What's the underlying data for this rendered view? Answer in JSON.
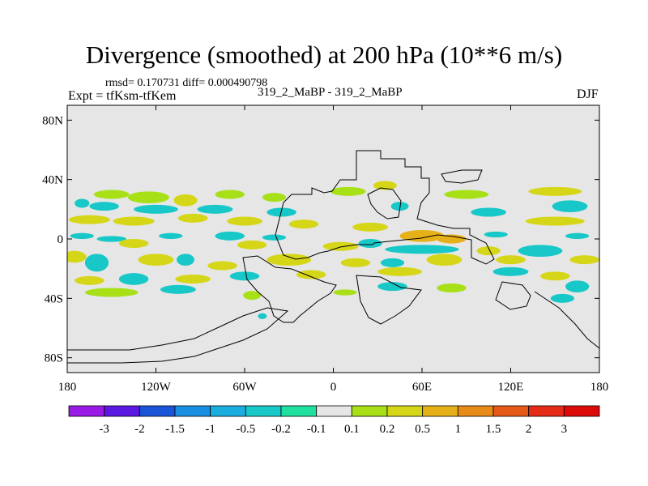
{
  "header": {
    "title": "Divergence (smoothed) at 200 hPa (10**6 m/s)",
    "rmsd_line": "rmsd= 0.170731 diff= 0.000490798",
    "expt_line": "Expt = tfKsm-tfKem",
    "runs_line": "319_2_MaBP - 319_2_MaBP",
    "season": "DJF"
  },
  "chart_data": {
    "type": "heatmap",
    "title": "Divergence (smoothed) at 200 hPa (10**6 m/s)",
    "xlabel": "",
    "ylabel": "",
    "xlim": [
      -180,
      180
    ],
    "ylim": [
      -90,
      90
    ],
    "x_ticks": [
      {
        "value": -180,
        "label": "180"
      },
      {
        "value": -120,
        "label": "120W"
      },
      {
        "value": -60,
        "label": "60W"
      },
      {
        "value": 0,
        "label": "0"
      },
      {
        "value": 60,
        "label": "60E"
      },
      {
        "value": 120,
        "label": "120E"
      },
      {
        "value": 180,
        "label": "180"
      }
    ],
    "y_ticks": [
      {
        "value": 80,
        "label": "80N"
      },
      {
        "value": 40,
        "label": "40N"
      },
      {
        "value": 0,
        "label": "0"
      },
      {
        "value": -40,
        "label": "40S"
      },
      {
        "value": -80,
        "label": "80S"
      }
    ],
    "colorbar": {
      "labels": [
        "-3",
        "-2",
        "-1.5",
        "-1",
        "-0.5",
        "-0.2",
        "-0.1",
        "0.1",
        "0.2",
        "0.5",
        "1",
        "1.5",
        "2",
        "3"
      ],
      "colors": [
        "#9a1ae6",
        "#5a18e0",
        "#1a55d8",
        "#1a8ee0",
        "#1aaee0",
        "#18c8c8",
        "#20e0a0",
        "#e6e6e6",
        "#a8e018",
        "#d6d618",
        "#e6b018",
        "#e68a18",
        "#e65818",
        "#e62a18",
        "#dd0a0a"
      ]
    },
    "background_color": "#e6e6e6",
    "features": [
      {
        "lon": -150,
        "lat": 30,
        "rx": 12,
        "ry": 3,
        "value": 0.2
      },
      {
        "lon": -125,
        "lat": 28,
        "rx": 14,
        "ry": 4,
        "value": 0.2
      },
      {
        "lon": -100,
        "lat": 26,
        "rx": 8,
        "ry": 4,
        "value": 0.3
      },
      {
        "lon": -70,
        "lat": 30,
        "rx": 10,
        "ry": 3,
        "value": 0.2
      },
      {
        "lon": -40,
        "lat": 28,
        "rx": 8,
        "ry": 3,
        "value": 0.2
      },
      {
        "lon": 10,
        "lat": 32,
        "rx": 12,
        "ry": 3,
        "value": 0.2
      },
      {
        "lon": 35,
        "lat": 36,
        "rx": 8,
        "ry": 3,
        "value": 0.3
      },
      {
        "lon": 90,
        "lat": 30,
        "rx": 15,
        "ry": 3,
        "value": 0.2
      },
      {
        "lon": 150,
        "lat": 32,
        "rx": 18,
        "ry": 3,
        "value": 0.3
      },
      {
        "lon": -170,
        "lat": 24,
        "rx": 5,
        "ry": 3,
        "value": -0.2
      },
      {
        "lon": -155,
        "lat": 22,
        "rx": 10,
        "ry": 3,
        "value": -0.3
      },
      {
        "lon": -120,
        "lat": 20,
        "rx": 15,
        "ry": 3,
        "value": -0.3
      },
      {
        "lon": -80,
        "lat": 20,
        "rx": 12,
        "ry": 3,
        "value": -0.3
      },
      {
        "lon": -35,
        "lat": 18,
        "rx": 10,
        "ry": 3,
        "value": -0.2
      },
      {
        "lon": 45,
        "lat": 22,
        "rx": 6,
        "ry": 3,
        "value": -0.3
      },
      {
        "lon": 105,
        "lat": 18,
        "rx": 12,
        "ry": 3,
        "value": -0.2
      },
      {
        "lon": 160,
        "lat": 22,
        "rx": 12,
        "ry": 4,
        "value": -0.3
      },
      {
        "lon": -165,
        "lat": 13,
        "rx": 14,
        "ry": 3,
        "value": 0.4
      },
      {
        "lon": -135,
        "lat": 12,
        "rx": 14,
        "ry": 3,
        "value": 0.3
      },
      {
        "lon": -95,
        "lat": 14,
        "rx": 10,
        "ry": 3,
        "value": 0.3
      },
      {
        "lon": -60,
        "lat": 12,
        "rx": 12,
        "ry": 3,
        "value": 0.3
      },
      {
        "lon": -20,
        "lat": 10,
        "rx": 10,
        "ry": 3,
        "value": 0.3
      },
      {
        "lon": 25,
        "lat": 8,
        "rx": 12,
        "ry": 3,
        "value": 0.3
      },
      {
        "lon": 150,
        "lat": 12,
        "rx": 20,
        "ry": 3,
        "value": 0.5
      },
      {
        "lon": -170,
        "lat": 2,
        "rx": 8,
        "ry": 2,
        "value": -0.3
      },
      {
        "lon": -150,
        "lat": 0,
        "rx": 10,
        "ry": 2,
        "value": -0.2
      },
      {
        "lon": -110,
        "lat": 2,
        "rx": 8,
        "ry": 2,
        "value": -0.3
      },
      {
        "lon": -70,
        "lat": 2,
        "rx": 10,
        "ry": 3,
        "value": -0.3
      },
      {
        "lon": -40,
        "lat": 1,
        "rx": 8,
        "ry": 2,
        "value": -0.2
      },
      {
        "lon": 110,
        "lat": 3,
        "rx": 8,
        "ry": 2,
        "value": -0.2
      },
      {
        "lon": 165,
        "lat": 2,
        "rx": 8,
        "ry": 2,
        "value": -0.3
      },
      {
        "lon": 60,
        "lat": 2,
        "rx": 15,
        "ry": 4,
        "value": 0.9
      },
      {
        "lon": 80,
        "lat": 0,
        "rx": 10,
        "ry": 3,
        "value": 0.6
      },
      {
        "lon": -135,
        "lat": -3,
        "rx": 10,
        "ry": 3,
        "value": 0.4
      },
      {
        "lon": -55,
        "lat": -4,
        "rx": 10,
        "ry": 3,
        "value": 0.3
      },
      {
        "lon": 5,
        "lat": -5,
        "rx": 12,
        "ry": 3,
        "value": 0.4
      },
      {
        "lon": 25,
        "lat": -3,
        "rx": 8,
        "ry": 3,
        "value": -0.3
      },
      {
        "lon": 60,
        "lat": -7,
        "rx": 25,
        "ry": 3,
        "value": -0.3
      },
      {
        "lon": 105,
        "lat": -8,
        "rx": 8,
        "ry": 3,
        "value": 0.5
      },
      {
        "lon": 140,
        "lat": -8,
        "rx": 15,
        "ry": 4,
        "value": -0.4
      },
      {
        "lon": -175,
        "lat": -12,
        "rx": 8,
        "ry": 4,
        "value": 0.3
      },
      {
        "lon": -160,
        "lat": -16,
        "rx": 8,
        "ry": 6,
        "value": -0.4
      },
      {
        "lon": -120,
        "lat": -14,
        "rx": 12,
        "ry": 4,
        "value": 0.5
      },
      {
        "lon": -100,
        "lat": -14,
        "rx": 6,
        "ry": 4,
        "value": -0.3
      },
      {
        "lon": -75,
        "lat": -18,
        "rx": 10,
        "ry": 3,
        "value": 0.3
      },
      {
        "lon": -30,
        "lat": -14,
        "rx": 15,
        "ry": 4,
        "value": 0.4
      },
      {
        "lon": 15,
        "lat": -16,
        "rx": 10,
        "ry": 3,
        "value": 0.3
      },
      {
        "lon": 40,
        "lat": -16,
        "rx": 8,
        "ry": 3,
        "value": -0.3
      },
      {
        "lon": 75,
        "lat": -14,
        "rx": 12,
        "ry": 4,
        "value": 0.3
      },
      {
        "lon": 120,
        "lat": -14,
        "rx": 10,
        "ry": 3,
        "value": 0.3
      },
      {
        "lon": 170,
        "lat": -14,
        "rx": 10,
        "ry": 3,
        "value": 0.4
      },
      {
        "lon": -165,
        "lat": -28,
        "rx": 10,
        "ry": 3,
        "value": 0.3
      },
      {
        "lon": -135,
        "lat": -27,
        "rx": 10,
        "ry": 4,
        "value": -0.3
      },
      {
        "lon": -95,
        "lat": -27,
        "rx": 12,
        "ry": 3,
        "value": 0.3
      },
      {
        "lon": -60,
        "lat": -25,
        "rx": 10,
        "ry": 3,
        "value": -0.2
      },
      {
        "lon": -15,
        "lat": -24,
        "rx": 10,
        "ry": 3,
        "value": 0.3
      },
      {
        "lon": 45,
        "lat": -22,
        "rx": 15,
        "ry": 3,
        "value": 0.3
      },
      {
        "lon": 120,
        "lat": -22,
        "rx": 12,
        "ry": 3,
        "value": -0.3
      },
      {
        "lon": 150,
        "lat": -25,
        "rx": 10,
        "ry": 3,
        "value": 0.3
      },
      {
        "lon": 165,
        "lat": -32,
        "rx": 8,
        "ry": 4,
        "value": -0.4
      },
      {
        "lon": -150,
        "lat": -36,
        "rx": 18,
        "ry": 3,
        "value": 0.2
      },
      {
        "lon": -105,
        "lat": -34,
        "rx": 12,
        "ry": 3,
        "value": -0.2
      },
      {
        "lon": -55,
        "lat": -38,
        "rx": 6,
        "ry": 3,
        "value": 0.2
      },
      {
        "lon": -48,
        "lat": -52,
        "rx": 3,
        "ry": 2,
        "value": -0.3
      },
      {
        "lon": 8,
        "lat": -36,
        "rx": 8,
        "ry": 2,
        "value": 0.2
      },
      {
        "lon": 40,
        "lat": -32,
        "rx": 10,
        "ry": 3,
        "value": -0.2
      },
      {
        "lon": 80,
        "lat": -33,
        "rx": 10,
        "ry": 3,
        "value": 0.2
      },
      {
        "lon": 155,
        "lat": -40,
        "rx": 8,
        "ry": 3,
        "value": -0.2
      }
    ],
    "coastline_note": "crude land-sea outline overlay"
  }
}
